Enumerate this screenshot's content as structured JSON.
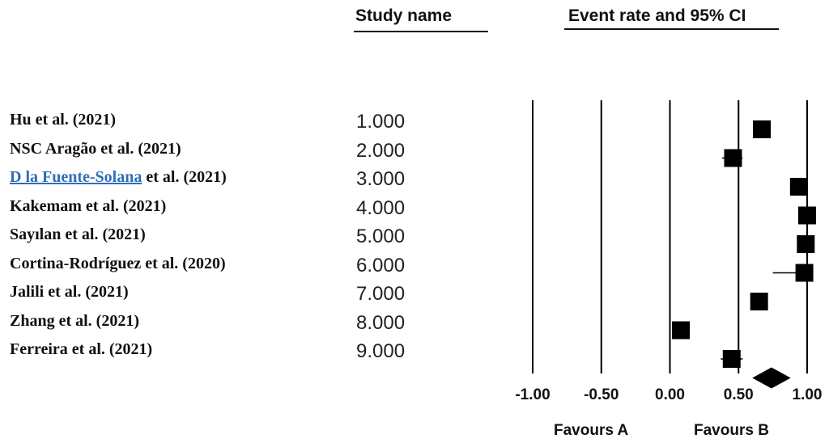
{
  "header": {
    "study_col": "Study name",
    "effect_col": "Event rate and 95% CI"
  },
  "chart_data": {
    "type": "forest",
    "title": "",
    "xlabel": "",
    "ylabel": "",
    "xlim": [
      -1.0,
      1.0
    ],
    "x_ticks": [
      "-1.00",
      "-0.50",
      "0.00",
      "0.50",
      "1.00"
    ],
    "x_tick_values": [
      -1.0,
      -0.5,
      0.0,
      0.5,
      1.0
    ],
    "favours_left": "Favours A",
    "favours_right": "Favours B",
    "studies": [
      {
        "name": "Hu et al. (2021)",
        "index": "1.000",
        "rate": 0.67,
        "lower": 0.63,
        "upper": 0.71
      },
      {
        "name": "NSC Aragão et al. (2021)",
        "index": "2.000",
        "rate": 0.46,
        "lower": 0.38,
        "upper": 0.53
      },
      {
        "name_link": "D la Fuente-Solana",
        "name": " et al.  (2021)",
        "index": "3.000",
        "rate": 0.94,
        "lower": 0.91,
        "upper": 0.96
      },
      {
        "name": "Kakemam et al. (2021)",
        "index": "4.000",
        "rate": 1.0,
        "lower": 0.99,
        "upper": 1.0
      },
      {
        "name": "Sayılan et al. (2021)",
        "index": "5.000",
        "rate": 0.99,
        "lower": 0.98,
        "upper": 1.0
      },
      {
        "name": "Cortina-Rodríguez et al. (2020)",
        "index": "6.000",
        "rate": 0.98,
        "lower": 0.75,
        "upper": 1.0
      },
      {
        "name": "Jalili et al. (2021)",
        "index": "7.000",
        "rate": 0.65,
        "lower": 0.62,
        "upper": 0.69
      },
      {
        "name": "Zhang et al. (2021)",
        "index": "8.000",
        "rate": 0.08,
        "lower": 0.04,
        "upper": 0.12
      },
      {
        "name": "Ferreira et al. (2021)",
        "index": "9.000",
        "rate": 0.45,
        "lower": 0.37,
        "upper": 0.53
      }
    ],
    "pooled": {
      "rate": 0.74,
      "lower": 0.6,
      "upper": 0.88
    }
  }
}
